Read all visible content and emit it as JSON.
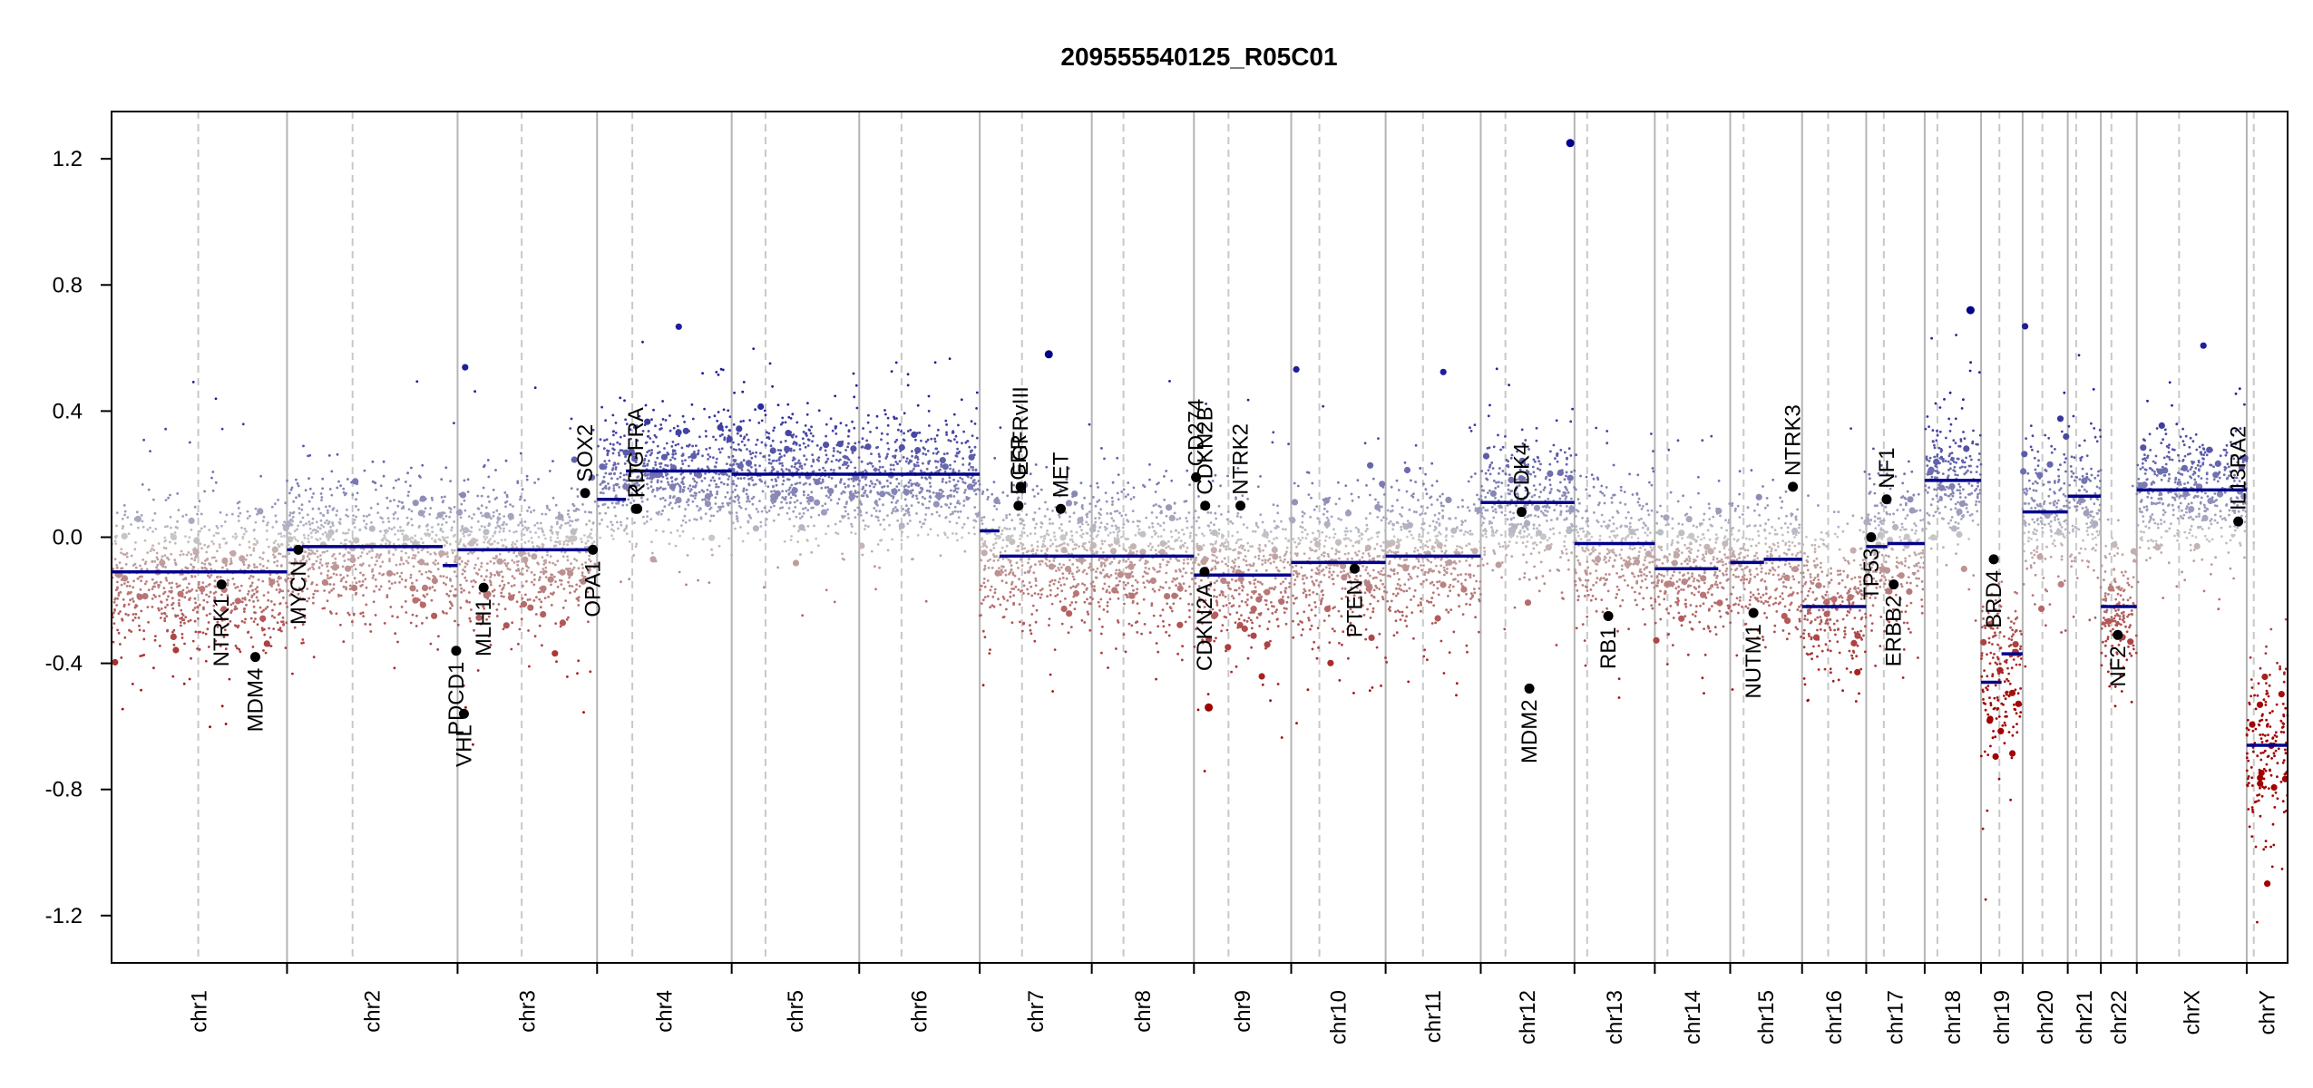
{
  "chart_data": {
    "type": "scatter",
    "title": "209555540125_R05C01",
    "xlabel": "",
    "ylabel": "",
    "ylim": [
      -1.35,
      1.35
    ],
    "yticks": [
      -1.2,
      -0.8,
      -0.4,
      0.0,
      0.4,
      0.8,
      1.2
    ],
    "ytick_labels": [
      "-1.2",
      "-0.8",
      "-0.4",
      "0.0",
      "0.4",
      "0.8",
      "1.2"
    ],
    "grid": false,
    "colors": {
      "segment": "#00008b",
      "gain": "#1f1f9a",
      "neutral": "#c8c8c8",
      "loss": "#a00000",
      "chr_boundary": "#b4b4b4",
      "centromere": "#c8c8c8",
      "marker": "#000000",
      "axis": "#000000"
    },
    "chromosomes": [
      {
        "name": "chr1",
        "start": 0,
        "end": 249,
        "cen": 123
      },
      {
        "name": "chr2",
        "start": 249,
        "end": 491,
        "cen": 93
      },
      {
        "name": "chr3",
        "start": 491,
        "end": 689,
        "cen": 91
      },
      {
        "name": "chr4",
        "start": 689,
        "end": 880,
        "cen": 50
      },
      {
        "name": "chr5",
        "start": 880,
        "end": 1061,
        "cen": 48
      },
      {
        "name": "chr6",
        "start": 1061,
        "end": 1232,
        "cen": 60
      },
      {
        "name": "chr7",
        "start": 1232,
        "end": 1391,
        "cen": 60
      },
      {
        "name": "chr8",
        "start": 1391,
        "end": 1536,
        "cen": 45
      },
      {
        "name": "chr9",
        "start": 1536,
        "end": 1674,
        "cen": 49
      },
      {
        "name": "chr10",
        "start": 1674,
        "end": 1808,
        "cen": 40
      },
      {
        "name": "chr11",
        "start": 1808,
        "end": 1943,
        "cen": 53
      },
      {
        "name": "chr12",
        "start": 1943,
        "end": 2076,
        "cen": 35
      },
      {
        "name": "chr13",
        "start": 2076,
        "end": 2190,
        "cen": 18
      },
      {
        "name": "chr14",
        "start": 2190,
        "end": 2297,
        "cen": 18
      },
      {
        "name": "chr15",
        "start": 2297,
        "end": 2399,
        "cen": 19
      },
      {
        "name": "chr16",
        "start": 2399,
        "end": 2490,
        "cen": 37
      },
      {
        "name": "chr17",
        "start": 2490,
        "end": 2573,
        "cen": 25
      },
      {
        "name": "chr18",
        "start": 2573,
        "end": 2653,
        "cen": 18
      },
      {
        "name": "chr19",
        "start": 2653,
        "end": 2712,
        "cen": 26
      },
      {
        "name": "chr20",
        "start": 2712,
        "end": 2776,
        "cen": 28
      },
      {
        "name": "chr21",
        "start": 2776,
        "end": 2823,
        "cen": 12
      },
      {
        "name": "chr22",
        "start": 2823,
        "end": 2874,
        "cen": 15
      },
      {
        "name": "chrX",
        "start": 2874,
        "end": 3030,
        "cen": 60
      },
      {
        "name": "chrY",
        "start": 3030,
        "end": 3088,
        "cen": 10
      }
    ],
    "segments": [
      {
        "start": 0,
        "end": 249,
        "value": -0.11
      },
      {
        "start": 249,
        "end": 270,
        "value": -0.04
      },
      {
        "start": 270,
        "end": 470,
        "value": -0.03
      },
      {
        "start": 470,
        "end": 491,
        "value": -0.09
      },
      {
        "start": 491,
        "end": 689,
        "value": -0.04
      },
      {
        "start": 689,
        "end": 730,
        "value": 0.12
      },
      {
        "start": 730,
        "end": 880,
        "value": 0.21
      },
      {
        "start": 880,
        "end": 1232,
        "value": 0.2
      },
      {
        "start": 1232,
        "end": 1260,
        "value": 0.02
      },
      {
        "start": 1260,
        "end": 1330,
        "value": -0.06
      },
      {
        "start": 1330,
        "end": 1474,
        "value": -0.06
      },
      {
        "start": 1474,
        "end": 1536,
        "value": -0.06
      },
      {
        "start": 1536,
        "end": 1674,
        "value": -0.12
      },
      {
        "start": 1674,
        "end": 1808,
        "value": -0.08
      },
      {
        "start": 1808,
        "end": 1943,
        "value": -0.06
      },
      {
        "start": 1943,
        "end": 2076,
        "value": 0.11
      },
      {
        "start": 2076,
        "end": 2190,
        "value": -0.02
      },
      {
        "start": 2190,
        "end": 2280,
        "value": -0.1
      },
      {
        "start": 2297,
        "end": 2345,
        "value": -0.08
      },
      {
        "start": 2345,
        "end": 2399,
        "value": -0.07
      },
      {
        "start": 2399,
        "end": 2490,
        "value": -0.22
      },
      {
        "start": 2490,
        "end": 2520,
        "value": -0.03
      },
      {
        "start": 2520,
        "end": 2573,
        "value": -0.02
      },
      {
        "start": 2573,
        "end": 2653,
        "value": 0.18
      },
      {
        "start": 2653,
        "end": 2682,
        "value": -0.46
      },
      {
        "start": 2682,
        "end": 2712,
        "value": -0.37
      },
      {
        "start": 2712,
        "end": 2776,
        "value": 0.08
      },
      {
        "start": 2776,
        "end": 2823,
        "value": 0.13
      },
      {
        "start": 2823,
        "end": 2874,
        "value": -0.22
      },
      {
        "start": 2874,
        "end": 3030,
        "value": 0.15
      },
      {
        "start": 3030,
        "end": 3088,
        "value": -0.66
      }
    ],
    "genes": [
      {
        "name": "NTRK1",
        "x": 156,
        "y": -0.15,
        "label_pos": "below"
      },
      {
        "name": "MDM4",
        "x": 204,
        "y": -0.38,
        "label_pos": "below"
      },
      {
        "name": "MYCN",
        "x": 265,
        "y": -0.04,
        "label_pos": "below"
      },
      {
        "name": "VHL",
        "x": 500,
        "y": -0.56,
        "label_pos": "below"
      },
      {
        "name": "PDCD1",
        "x": 489,
        "y": -0.36,
        "label_pos": "below"
      },
      {
        "name": "MLH1",
        "x": 528,
        "y": -0.16,
        "label_pos": "below"
      },
      {
        "name": "SOX2",
        "x": 672,
        "y": 0.14,
        "label_pos": "above"
      },
      {
        "name": "OPA1",
        "x": 683,
        "y": -0.04,
        "label_pos": "below"
      },
      {
        "name": "PDGFRA",
        "x": 744,
        "y": 0.09,
        "label_pos": "above"
      },
      {
        "name": "KIT",
        "x": 746,
        "y": 0.09,
        "label_pos": "above"
      },
      {
        "name": "EGFR",
        "x": 1287,
        "y": 0.1,
        "label_pos": "above"
      },
      {
        "name": "EGFRvIII",
        "x": 1290,
        "y": 0.16,
        "label_pos": "above"
      },
      {
        "name": "MET",
        "x": 1347,
        "y": 0.09,
        "label_pos": "above"
      },
      {
        "name": "CD274",
        "x": 1539,
        "y": 0.19,
        "label_pos": "above"
      },
      {
        "name": "CDKN2B",
        "x": 1552,
        "y": 0.1,
        "label_pos": "above"
      },
      {
        "name": "CDKN2A",
        "x": 1551,
        "y": -0.11,
        "label_pos": "below"
      },
      {
        "name": "NTRK2",
        "x": 1602,
        "y": 0.1,
        "label_pos": "above"
      },
      {
        "name": "PTEN",
        "x": 1764,
        "y": -0.1,
        "label_pos": "below"
      },
      {
        "name": "CDK4",
        "x": 2001,
        "y": 0.08,
        "label_pos": "above"
      },
      {
        "name": "MDM2",
        "x": 2012,
        "y": -0.48,
        "label_pos": "below"
      },
      {
        "name": "RB1",
        "x": 2124,
        "y": -0.25,
        "label_pos": "below"
      },
      {
        "name": "NUTM1",
        "x": 2330,
        "y": -0.24,
        "label_pos": "below"
      },
      {
        "name": "NTRK3",
        "x": 2386,
        "y": 0.16,
        "label_pos": "above"
      },
      {
        "name": "TP53",
        "x": 2497,
        "y": 0.0,
        "label_pos": "below"
      },
      {
        "name": "NF1",
        "x": 2519,
        "y": 0.12,
        "label_pos": "above"
      },
      {
        "name": "ERBB2",
        "x": 2529,
        "y": -0.15,
        "label_pos": "below"
      },
      {
        "name": "BRD4",
        "x": 2671,
        "y": -0.07,
        "label_pos": "below"
      },
      {
        "name": "NF2",
        "x": 2847,
        "y": -0.31,
        "label_pos": "below"
      },
      {
        "name": "IL13RA2",
        "x": 3018,
        "y": 0.05,
        "label_pos": "above"
      }
    ],
    "noise": [
      {
        "chr": "chr1",
        "center": -0.12,
        "spread": 0.28
      },
      {
        "chr": "chr2",
        "center": -0.03,
        "spread": 0.25
      },
      {
        "chr": "chr3",
        "center": -0.05,
        "spread": 0.25
      },
      {
        "chr": "chr4",
        "center": 0.2,
        "spread": 0.22
      },
      {
        "chr": "chr5",
        "center": 0.2,
        "spread": 0.22
      },
      {
        "chr": "chr6",
        "center": 0.19,
        "spread": 0.22
      },
      {
        "chr": "chr7",
        "center": -0.05,
        "spread": 0.26
      },
      {
        "chr": "chr8",
        "center": -0.05,
        "spread": 0.26
      },
      {
        "chr": "chr9",
        "center": -0.11,
        "spread": 0.26
      },
      {
        "chr": "chr10",
        "center": -0.08,
        "spread": 0.26
      },
      {
        "chr": "chr11",
        "center": -0.05,
        "spread": 0.27
      },
      {
        "chr": "chr12",
        "center": 0.1,
        "spread": 0.24
      },
      {
        "chr": "chr13",
        "center": -0.02,
        "spread": 0.24
      },
      {
        "chr": "chr14",
        "center": -0.09,
        "spread": 0.24
      },
      {
        "chr": "chr15",
        "center": -0.08,
        "spread": 0.25
      },
      {
        "chr": "chr16",
        "center": -0.2,
        "spread": 0.26
      },
      {
        "chr": "chr17",
        "center": -0.03,
        "spread": 0.27
      },
      {
        "chr": "chr18",
        "center": 0.18,
        "spread": 0.22
      },
      {
        "chr": "chr19",
        "center": -0.42,
        "spread": 0.3
      },
      {
        "chr": "chr20",
        "center": 0.08,
        "spread": 0.25
      },
      {
        "chr": "chr21",
        "center": 0.12,
        "spread": 0.24
      },
      {
        "chr": "chr22",
        "center": -0.22,
        "spread": 0.26
      },
      {
        "chr": "chrX",
        "center": 0.14,
        "spread": 0.22
      },
      {
        "chr": "chrY",
        "center": -0.65,
        "spread": 0.35
      }
    ],
    "outliers": [
      {
        "x": 2638,
        "y": 0.72
      },
      {
        "x": 1330,
        "y": 0.58
      },
      {
        "x": 1557,
        "y": -0.54
      },
      {
        "x": 2070,
        "y": 1.25
      }
    ]
  }
}
